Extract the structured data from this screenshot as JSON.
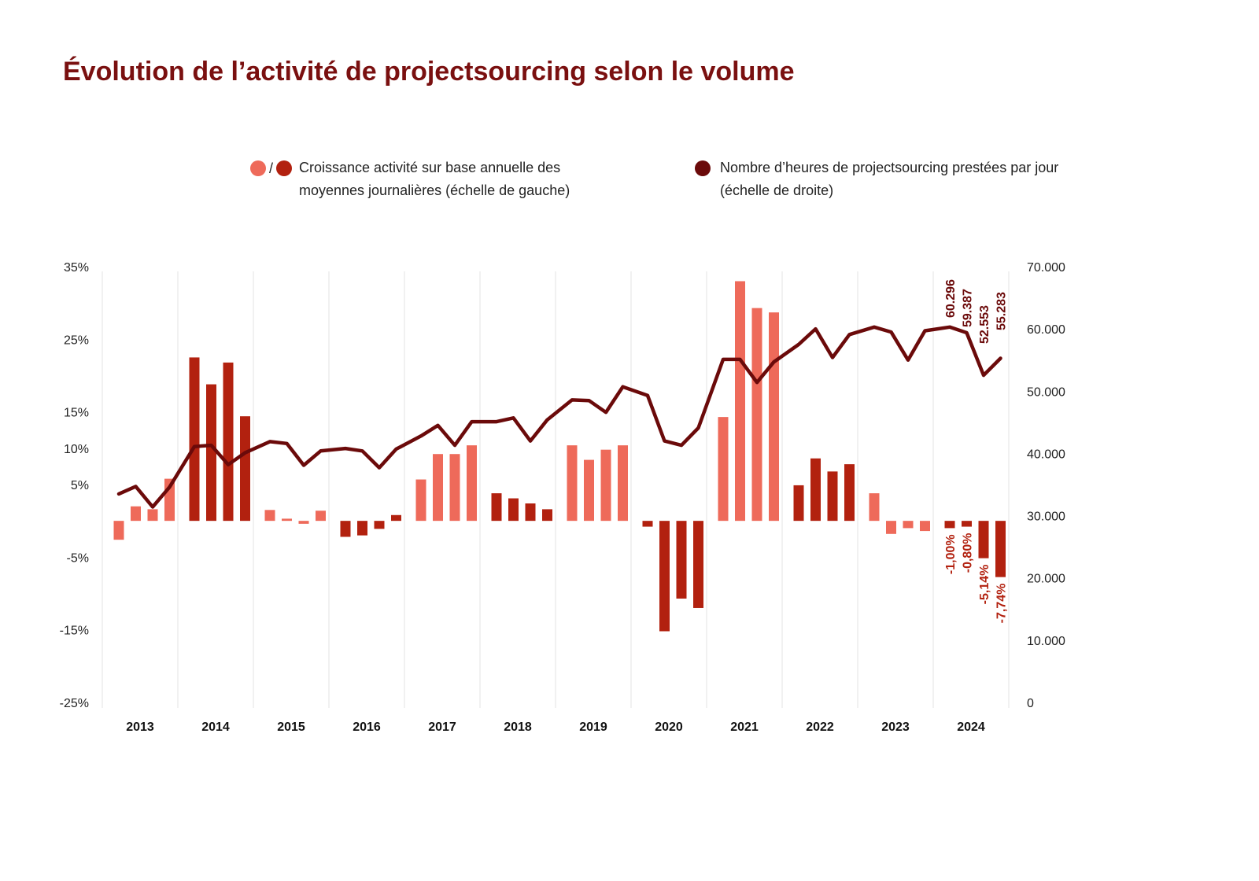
{
  "title": "Évolution de l’activité de projectsourcing selon le volume",
  "legend": {
    "bars_label_line1": "Croissance activité sur base annuelle des",
    "bars_label_line2": "moyennes journalières (échelle de gauche)",
    "bars_slash": "/",
    "line_label_line1": "Nombre d’heures de projectsourcing prestées par jour",
    "line_label_line2": "(échelle de droite)"
  },
  "colors": {
    "bar_positive_light": "#ee6a5a",
    "bar_dark": "#b2210f",
    "line": "#6b0a0a",
    "title": "#7a1010",
    "grid": "#e3e3e3"
  },
  "chart_data": {
    "type": "bar+line",
    "categories": [
      "2013",
      "2014",
      "2015",
      "2016",
      "2017",
      "2018",
      "2019",
      "2020",
      "2021",
      "2022",
      "2023",
      "2024"
    ],
    "left_axis": {
      "ticks": [
        -25,
        -15,
        -5,
        5,
        10,
        15,
        25,
        35
      ],
      "tick_labels": [
        "-25%",
        "-15%",
        "-5%",
        "5%",
        "10%",
        "15%",
        "25%",
        "35%"
      ],
      "range": [
        -25,
        35
      ]
    },
    "right_axis": {
      "ticks": [
        0,
        10000,
        20000,
        30000,
        40000,
        50000,
        60000,
        70000
      ],
      "tick_labels": [
        "0",
        "10.000",
        "20.000",
        "30.000",
        "40.000",
        "50.000",
        "60.000",
        "70.000"
      ],
      "range": [
        0,
        70000
      ]
    },
    "bar_series": {
      "name": "Croissance activité sur base annuelle des moyennes journalières",
      "unit": "%",
      "values": [
        -2.6,
        2.0,
        1.6,
        5.8,
        22.5,
        18.8,
        21.8,
        14.4,
        1.5,
        0.3,
        -0.4,
        1.4,
        -2.2,
        -2.0,
        -1.1,
        0.8,
        5.7,
        9.2,
        9.2,
        10.4,
        3.8,
        3.1,
        2.4,
        1.6,
        10.4,
        8.4,
        9.8,
        10.4,
        -0.8,
        -15.2,
        -10.7,
        -12.0,
        14.3,
        33.0,
        29.3,
        28.7,
        4.9,
        8.6,
        6.8,
        7.8,
        3.8,
        -1.8,
        -1.0,
        -1.4,
        -1.0,
        -0.8,
        -5.14,
        -7.74
      ],
      "shade": [
        "light",
        "light",
        "light",
        "light",
        "dark",
        "dark",
        "dark",
        "dark",
        "light",
        "light",
        "light",
        "light",
        "dark",
        "dark",
        "dark",
        "dark",
        "light",
        "light",
        "light",
        "light",
        "dark",
        "dark",
        "dark",
        "dark",
        "light",
        "light",
        "light",
        "light",
        "dark",
        "dark",
        "dark",
        "dark",
        "light",
        "light",
        "light",
        "light",
        "dark",
        "dark",
        "dark",
        "dark",
        "light",
        "light",
        "light",
        "light",
        "dark",
        "dark",
        "dark",
        "dark"
      ]
    },
    "line_series": {
      "name": "Nombre d’heures de projectsourcing prestées par jour",
      "values": [
        33500,
        34700,
        31400,
        34600,
        41100,
        41300,
        38200,
        40100,
        41900,
        41600,
        38100,
        40400,
        40800,
        40400,
        37700,
        40700,
        42800,
        44500,
        41300,
        45100,
        45100,
        45700,
        42000,
        45400,
        48600,
        48500,
        46600,
        50700,
        49300,
        42000,
        41300,
        44100,
        55100,
        55100,
        51400,
        54700,
        57500,
        60000,
        55400,
        59100,
        60300,
        59500,
        55000,
        59700,
        60296,
        59387,
        52553,
        55283
      ]
    },
    "annotations": {
      "line_labels": [
        "60.296",
        "59.387",
        "52.553",
        "55.283"
      ],
      "bar_labels": [
        "-1,00%",
        "-0,80%",
        "-5,14%",
        "-7,74%"
      ]
    },
    "grid": "vertical separators between years"
  }
}
